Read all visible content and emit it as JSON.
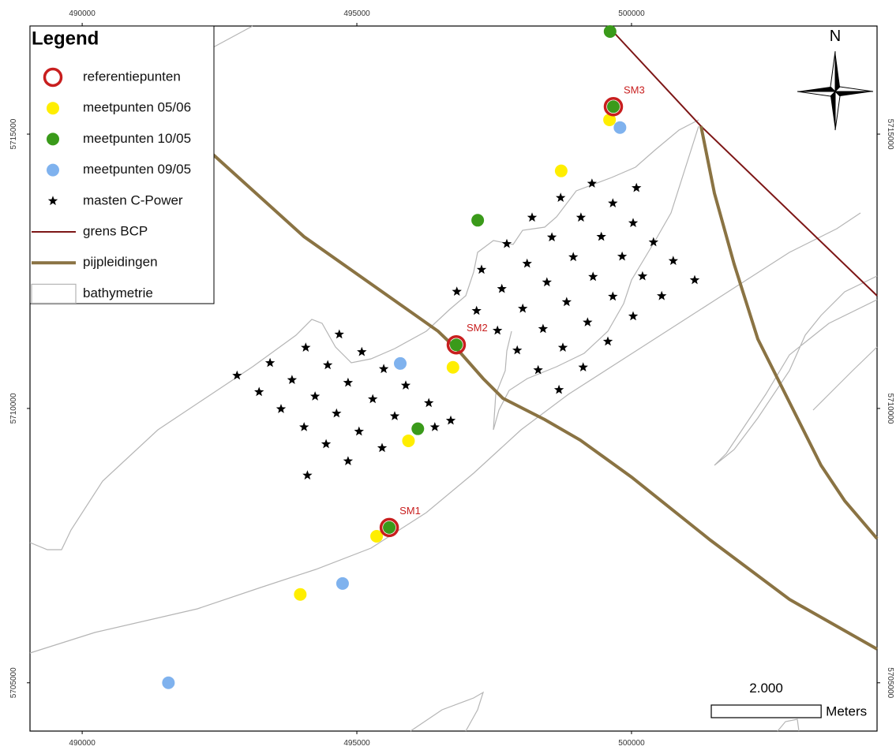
{
  "map": {
    "legend_title": "Legend",
    "xlim": [
      489050,
      504470
    ],
    "ylim": [
      5704120,
      5716970
    ],
    "xticks": [
      490000,
      495000,
      500000
    ],
    "yticks": [
      5705000,
      5710000,
      5715000
    ],
    "north": "N",
    "scale_bar": {
      "value": 2000,
      "label": "2.000",
      "units": "Meters"
    },
    "layers": [
      {
        "name": "referentiepunten",
        "symbol": "ring",
        "color": "#c81e1e",
        "x": [
          499670,
          496810,
          495590
        ],
        "y": [
          5715500,
          5711160,
          5707830
        ],
        "labels": [
          "SM3",
          "SM2",
          "SM1"
        ]
      },
      {
        "name": "meetpunten 05/06",
        "symbol": "dot",
        "color": "#ffee00",
        "x": [
          499600,
          498720,
          496750,
          495940,
          495360,
          493970
        ],
        "y": [
          5715260,
          5714330,
          5710750,
          5709410,
          5707670,
          5706610
        ]
      },
      {
        "name": "meetpunten 10/05",
        "symbol": "dot",
        "color": "#3a9a1a",
        "x": [
          499610,
          499670,
          497200,
          496810,
          496110,
          495590
        ],
        "y": [
          5716870,
          5715500,
          5713430,
          5711160,
          5709630,
          5707830
        ]
      },
      {
        "name": "meetpunten 09/05",
        "symbol": "dot",
        "color": "#7fb2ee",
        "x": [
          499790,
          495790,
          494740,
          491570
        ],
        "y": [
          5715120,
          5710820,
          5706810,
          5705000
        ]
      },
      {
        "name": "masten C-Power",
        "symbol": "star",
        "color": "#000000",
        "x": [
          499280,
          500090,
          498710,
          499660,
          498190,
          499080,
          500030,
          497730,
          498550,
          499450,
          500400,
          497270,
          498100,
          498940,
          499830,
          500760,
          496820,
          497640,
          498460,
          499300,
          500200,
          501150,
          497180,
          498020,
          498820,
          499660,
          500550,
          497560,
          498390,
          499200,
          500030,
          497920,
          498750,
          499570,
          498300,
          499120,
          498680,
          494680,
          494070,
          495090,
          493420,
          494470,
          495490,
          492820,
          493820,
          494840,
          495890,
          493220,
          494240,
          495290,
          496310,
          493620,
          494630,
          495690,
          496710,
          494040,
          495040,
          496420,
          494440,
          495460,
          494840,
          494100
        ],
        "y": [
          5714100,
          5714020,
          5713840,
          5713740,
          5713480,
          5713480,
          5713380,
          5713000,
          5713120,
          5713130,
          5713030,
          5712530,
          5712640,
          5712760,
          5712770,
          5712690,
          5712130,
          5712180,
          5712300,
          5712400,
          5712410,
          5712340,
          5711780,
          5711820,
          5711940,
          5712040,
          5712050,
          5711420,
          5711450,
          5711570,
          5711680,
          5711060,
          5711110,
          5711220,
          5710700,
          5710750,
          5710340,
          5711350,
          5711110,
          5711030,
          5710830,
          5710790,
          5710720,
          5710600,
          5710520,
          5710470,
          5710420,
          5710300,
          5710220,
          5710170,
          5710100,
          5709990,
          5709910,
          5709860,
          5709780,
          5709660,
          5709580,
          5709660,
          5709350,
          5709280,
          5709040,
          5708780
        ]
      },
      {
        "name": "grens BCP",
        "symbol": "thin-line",
        "color": "#7d1616"
      },
      {
        "name": "pijpleidingen",
        "symbol": "thick-line",
        "color": "#8a7343"
      },
      {
        "name": "bathymetrie",
        "symbol": "polygon",
        "color": "#b5b5b5"
      }
    ]
  }
}
